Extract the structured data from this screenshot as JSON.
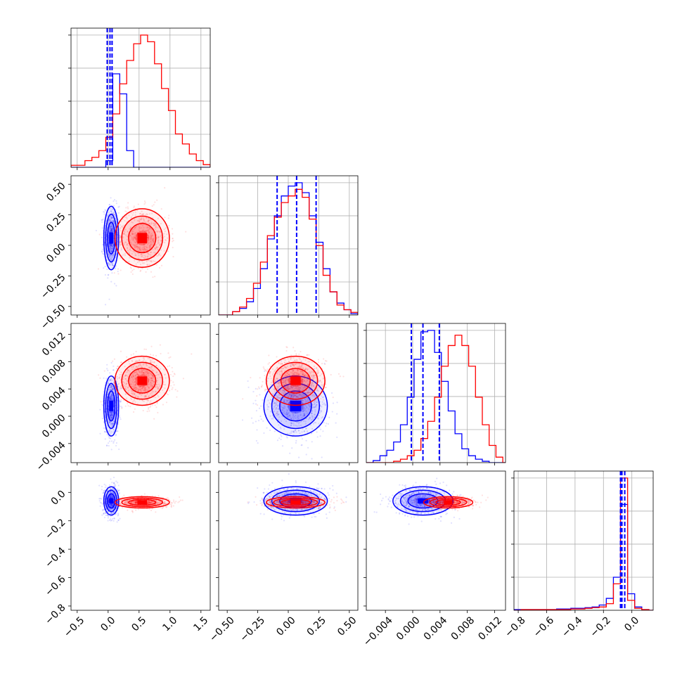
{
  "chart_data": {
    "type": "corner",
    "grid": true,
    "series": [
      {
        "name": "",
        "color": "#0000ff",
        "means": [
          0.05,
          0.06,
          0.0015,
          -0.06
        ],
        "sds": [
          0.06,
          0.13,
          0.0022,
          0.05
        ],
        "quantiles": [
          [
            0.02,
            0.06,
            0.09
          ],
          [
            -0.08,
            0.06,
            0.2
          ],
          [
            -0.0002,
            0.0015,
            0.0039
          ],
          [
            -0.08,
            -0.07,
            -0.05
          ]
        ]
      },
      {
        "name": "",
        "color": "#ff0000",
        "means": [
          0.55,
          0.06,
          0.0052,
          -0.07
        ],
        "sds": [
          0.22,
          0.12,
          0.0018,
          0.02
        ]
      }
    ],
    "histograms": [
      {
        "param": 0,
        "range": [
          -0.5,
          1.5
        ],
        "edges": [
          -0.5,
          -0.4,
          -0.3,
          -0.2,
          -0.1,
          0.0,
          0.1,
          0.2,
          0.3,
          0.4,
          0.5,
          0.6,
          0.7,
          0.8,
          0.9,
          1.0,
          1.1,
          1.2,
          1.3,
          1.4,
          1.5
        ],
        "counts": [
          [
            0,
            0,
            0,
            0,
            0,
            10,
            140,
            110,
            25,
            0,
            0,
            0,
            0,
            0,
            0,
            0,
            0,
            0,
            0,
            0
          ],
          [
            3,
            3,
            10,
            15,
            25,
            45,
            80,
            125,
            160,
            185,
            198,
            188,
            155,
            118,
            85,
            50,
            35,
            20,
            10,
            4
          ]
        ]
      },
      {
        "param": 1,
        "range": [
          -0.5,
          0.5
        ],
        "edges": [
          -0.5,
          -0.45,
          -0.4,
          -0.35,
          -0.3,
          -0.25,
          -0.2,
          -0.15,
          -0.1,
          -0.05,
          0.0,
          0.05,
          0.1,
          0.15,
          0.2,
          0.25,
          0.3,
          0.35,
          0.4,
          0.45,
          0.5
        ],
        "counts": [
          [
            0,
            0,
            5,
            10,
            20,
            40,
            70,
            115,
            150,
            180,
            195,
            200,
            185,
            150,
            110,
            70,
            35,
            18,
            8,
            2
          ],
          [
            0,
            0,
            5,
            12,
            25,
            48,
            80,
            120,
            148,
            170,
            180,
            190,
            178,
            145,
            105,
            60,
            35,
            15,
            8,
            4
          ]
        ]
      },
      {
        "param": 2,
        "range": [
          -0.0068,
          0.0136
        ],
        "edges": [
          -0.0068,
          -0.0058,
          -0.0048,
          -0.0038,
          -0.0028,
          -0.0018,
          -0.0008,
          0.0002,
          0.0012,
          0.0022,
          0.0032,
          0.0042,
          0.0052,
          0.0062,
          0.0072,
          0.0082,
          0.0092,
          0.0102,
          0.0112,
          0.0122,
          0.0132,
          0.0136
        ],
        "counts": [
          [
            0,
            3,
            10,
            18,
            30,
            55,
            95,
            150,
            190,
            192,
            160,
            118,
            75,
            42,
            20,
            10,
            5,
            2,
            0,
            0,
            0
          ],
          [
            0,
            0,
            0,
            0,
            2,
            5,
            10,
            18,
            35,
            60,
            95,
            140,
            170,
            185,
            170,
            140,
            95,
            55,
            25,
            8,
            0
          ]
        ]
      },
      {
        "param": 3,
        "range": [
          -0.83,
          0.15
        ],
        "edges": [
          -0.83,
          -0.78,
          -0.73,
          -0.68,
          -0.63,
          -0.58,
          -0.53,
          -0.48,
          -0.43,
          -0.38,
          -0.33,
          -0.28,
          -0.23,
          -0.18,
          -0.13,
          -0.08,
          -0.03,
          0.02,
          0.07,
          0.12,
          0.15
        ],
        "counts": [
          [
            1,
            1,
            1,
            1,
            1,
            1,
            2,
            2,
            3,
            3,
            4,
            5,
            8,
            18,
            50,
            160,
            25,
            5,
            1,
            0
          ],
          [
            0,
            1,
            1,
            1,
            1,
            1,
            1,
            1,
            2,
            2,
            3,
            4,
            5,
            10,
            40,
            200,
            15,
            3,
            1,
            0
          ]
        ]
      }
    ],
    "axes": [
      {
        "param": 0,
        "range": [
          -0.6,
          1.65
        ],
        "ticks": [
          -0.5,
          0.0,
          0.5,
          1.0,
          1.5
        ],
        "tick_labels": [
          "−0.5",
          "0.0",
          "0.5",
          "1.0",
          "1.5"
        ]
      },
      {
        "param": 1,
        "range": [
          -0.57,
          0.57
        ],
        "ticks": [
          -0.5,
          -0.25,
          0.0,
          0.25,
          0.5
        ],
        "tick_labels": [
          "−0.50",
          "−0.25",
          "0.00",
          "0.25",
          "0.50"
        ]
      },
      {
        "param": 2,
        "range": [
          -0.0068,
          0.0136
        ],
        "ticks": [
          -0.004,
          0.0,
          0.004,
          0.008,
          0.012
        ],
        "tick_labels": [
          "−0.004",
          "0.000",
          "0.004",
          "0.008",
          "0.012"
        ]
      },
      {
        "param": 3,
        "range": [
          -0.83,
          0.15
        ],
        "ticks": [
          -0.8,
          -0.6,
          -0.4,
          -0.2,
          0.0
        ],
        "tick_labels": [
          "−0.8",
          "−0.6",
          "−0.4",
          "−0.2",
          "0.0"
        ]
      }
    ]
  }
}
